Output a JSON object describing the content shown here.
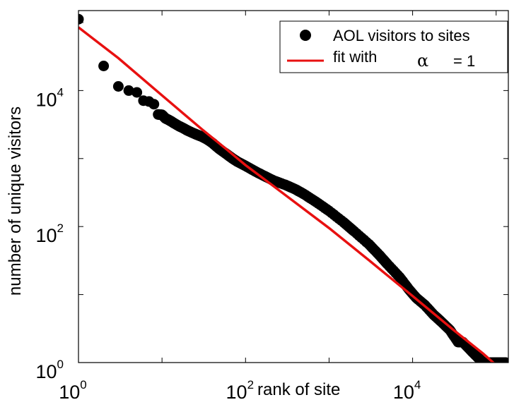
{
  "chart_data": {
    "type": "scatter",
    "title": "",
    "xlabel": "rank of site",
    "ylabel": "number of unique visitors",
    "x_scale": "log",
    "y_scale": "log",
    "xlim": [
      1,
      140000
    ],
    "ylim": [
      1,
      150000
    ],
    "grid": false,
    "legend_position": "top-right",
    "x_ticks": [
      {
        "base": "10",
        "exp": "0",
        "value": 1
      },
      {
        "base": "10",
        "exp": "2",
        "value": 100
      },
      {
        "base": "10",
        "exp": "4",
        "value": 10000
      }
    ],
    "y_ticks": [
      {
        "base": "10",
        "exp": "0",
        "value": 1
      },
      {
        "base": "10",
        "exp": "2",
        "value": 100
      },
      {
        "base": "10",
        "exp": "4",
        "value": 10000
      }
    ],
    "series": [
      {
        "name": "AOL visitors to sites",
        "kind": "scatter",
        "color": "#000000",
        "points": [
          [
            1,
            112000
          ],
          [
            2,
            23000
          ],
          [
            3,
            11500
          ],
          [
            4,
            10000
          ],
          [
            5,
            9400
          ],
          [
            6,
            7100
          ],
          [
            7,
            6900
          ],
          [
            8,
            6300
          ],
          [
            9,
            4450
          ],
          [
            10,
            4400
          ],
          [
            11,
            3900
          ],
          [
            12,
            3700
          ],
          [
            13,
            3500
          ],
          [
            14,
            3300
          ],
          [
            16,
            3000
          ],
          [
            18,
            2800
          ],
          [
            20,
            2600
          ],
          [
            23,
            2400
          ],
          [
            26,
            2250
          ],
          [
            30,
            2100
          ],
          [
            35,
            1900
          ],
          [
            40,
            1700
          ],
          [
            45,
            1500
          ],
          [
            50,
            1350
          ],
          [
            60,
            1150
          ],
          [
            70,
            1000
          ],
          [
            80,
            900
          ],
          [
            100,
            780
          ],
          [
            130,
            650
          ],
          [
            170,
            550
          ],
          [
            220,
            470
          ],
          [
            300,
            410
          ],
          [
            400,
            350
          ],
          [
            500,
            300
          ],
          [
            700,
            230
          ],
          [
            1000,
            170
          ],
          [
            1500,
            115
          ],
          [
            2000,
            85
          ],
          [
            3000,
            55
          ],
          [
            4000,
            38
          ],
          [
            5000,
            28
          ],
          [
            7000,
            18
          ],
          [
            9000,
            12
          ],
          [
            11000,
            9
          ],
          [
            14000,
            7
          ],
          [
            18000,
            5
          ],
          [
            22000,
            4
          ],
          [
            28000,
            3
          ],
          [
            35000,
            2
          ],
          [
            40000,
            2
          ],
          [
            50000,
            1.5
          ],
          [
            60000,
            1.2
          ],
          [
            70000,
            1
          ],
          [
            80000,
            1
          ],
          [
            90000,
            1
          ],
          [
            100000,
            1
          ],
          [
            110000,
            1
          ],
          [
            120000,
            1
          ],
          [
            130000,
            1
          ]
        ]
      },
      {
        "name": "fit with",
        "name_symbol": "α",
        "name_suffix": "= 1",
        "kind": "line",
        "color": "#e81010",
        "points": [
          [
            1,
            85000
          ],
          [
            3,
            30000
          ],
          [
            10,
            8500
          ],
          [
            30,
            2700
          ],
          [
            60,
            1350
          ],
          [
            100,
            800
          ],
          [
            300,
            290
          ],
          [
            1000,
            95
          ],
          [
            3000,
            32
          ],
          [
            10000,
            9.5
          ],
          [
            30000,
            3.1
          ],
          [
            70000,
            1.35
          ],
          [
            120000,
            0.75
          ],
          [
            140000,
            0.62
          ]
        ]
      }
    ]
  }
}
